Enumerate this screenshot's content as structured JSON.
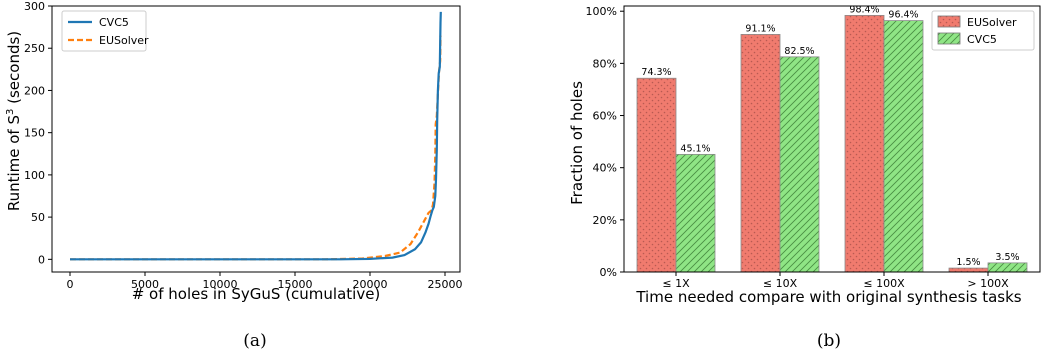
{
  "chart_data": [
    {
      "type": "line",
      "xlabel": "# of holes in SyGuS (cumulative)",
      "ylabel_prefix": "Runtime of S",
      "ylabel_sup": "3",
      "ylabel_suffix": " (seconds)",
      "xlim": [
        -1200,
        26000
      ],
      "ylim": [
        -15,
        300
      ],
      "xticks": [
        0,
        5000,
        10000,
        15000,
        20000,
        25000
      ],
      "yticks": [
        0,
        50,
        100,
        150,
        200,
        250,
        300
      ],
      "legend_position": "top-left",
      "caption": "(a)",
      "series": [
        {
          "name": "CVC5",
          "color": "#1f77b4",
          "style": "solid",
          "points": [
            [
              0,
              0
            ],
            [
              18000,
              0
            ],
            [
              20000,
              0.5
            ],
            [
              21500,
              2
            ],
            [
              22300,
              5
            ],
            [
              23000,
              12
            ],
            [
              23400,
              20
            ],
            [
              23700,
              32
            ],
            [
              23900,
              42
            ],
            [
              24050,
              52
            ],
            [
              24150,
              58
            ],
            [
              24250,
              62
            ],
            [
              24350,
              75
            ],
            [
              24400,
              95
            ],
            [
              24450,
              130
            ],
            [
              24480,
              165
            ],
            [
              24530,
              200
            ],
            [
              24580,
              220
            ],
            [
              24650,
              228
            ],
            [
              24700,
              280
            ],
            [
              24720,
              293
            ]
          ]
        },
        {
          "name": "EUSolver",
          "color": "#ff7f0e",
          "style": "dashed",
          "points": [
            [
              0,
              0
            ],
            [
              17000,
              0
            ],
            [
              19500,
              1
            ],
            [
              21000,
              4
            ],
            [
              22000,
              8
            ],
            [
              22700,
              18
            ],
            [
              23200,
              32
            ],
            [
              23600,
              45
            ],
            [
              23900,
              55
            ],
            [
              24100,
              58
            ],
            [
              24200,
              65
            ],
            [
              24300,
              90
            ],
            [
              24350,
              125
            ],
            [
              24380,
              160
            ],
            [
              24450,
              170
            ],
            [
              24550,
              205
            ],
            [
              24600,
              222
            ],
            [
              24680,
              235
            ],
            [
              24700,
              265
            ]
          ]
        }
      ]
    },
    {
      "type": "bar",
      "xlabel": "Time needed compare with original synthesis tasks",
      "ylabel": "Fraction of holes",
      "categories": [
        "≤ 1X",
        "≤ 10X",
        "≤ 100X",
        "> 100X"
      ],
      "ylim": [
        0,
        1.02
      ],
      "yticks": [
        "0%",
        "20%",
        "40%",
        "60%",
        "80%",
        "100%"
      ],
      "ytick_values": [
        0,
        0.2,
        0.4,
        0.6,
        0.8,
        1.0
      ],
      "legend_position": "top-right",
      "caption": "(b)",
      "series": [
        {
          "name": "EUSolver",
          "color": "#f07b6e",
          "pattern": "dots",
          "values": [
            0.743,
            0.911,
            0.984,
            0.015
          ],
          "labels": [
            "74.3%",
            "91.1%",
            "98.4%",
            "1.5%"
          ]
        },
        {
          "name": "CVC5",
          "color": "#8fe585",
          "pattern": "hatch",
          "values": [
            0.451,
            0.825,
            0.964,
            0.035
          ],
          "labels": [
            "45.1%",
            "82.5%",
            "96.4%",
            "3.5%"
          ]
        }
      ]
    }
  ]
}
